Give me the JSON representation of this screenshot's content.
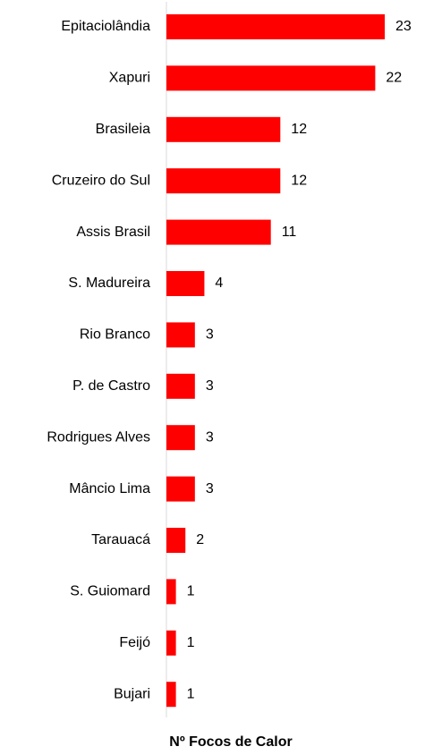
{
  "chart_data": {
    "type": "hbar",
    "x_label": "Nº Focos de Calor",
    "categories": [
      "Epitaciolândia",
      "Xapuri",
      "Brasileia",
      "Cruzeiro do Sul",
      "Assis Brasil",
      "S. Madureira",
      "Rio Branco",
      "P. de Castro",
      "Rodrigues Alves",
      "Mâncio Lima",
      "Tarauacá",
      "S. Guiomard",
      "Feijó",
      "Bujari"
    ],
    "values": [
      23,
      22,
      12,
      12,
      11,
      4,
      3,
      3,
      3,
      3,
      2,
      1,
      1,
      1
    ],
    "color": "#ff0000",
    "xlim": [
      0,
      23
    ]
  }
}
